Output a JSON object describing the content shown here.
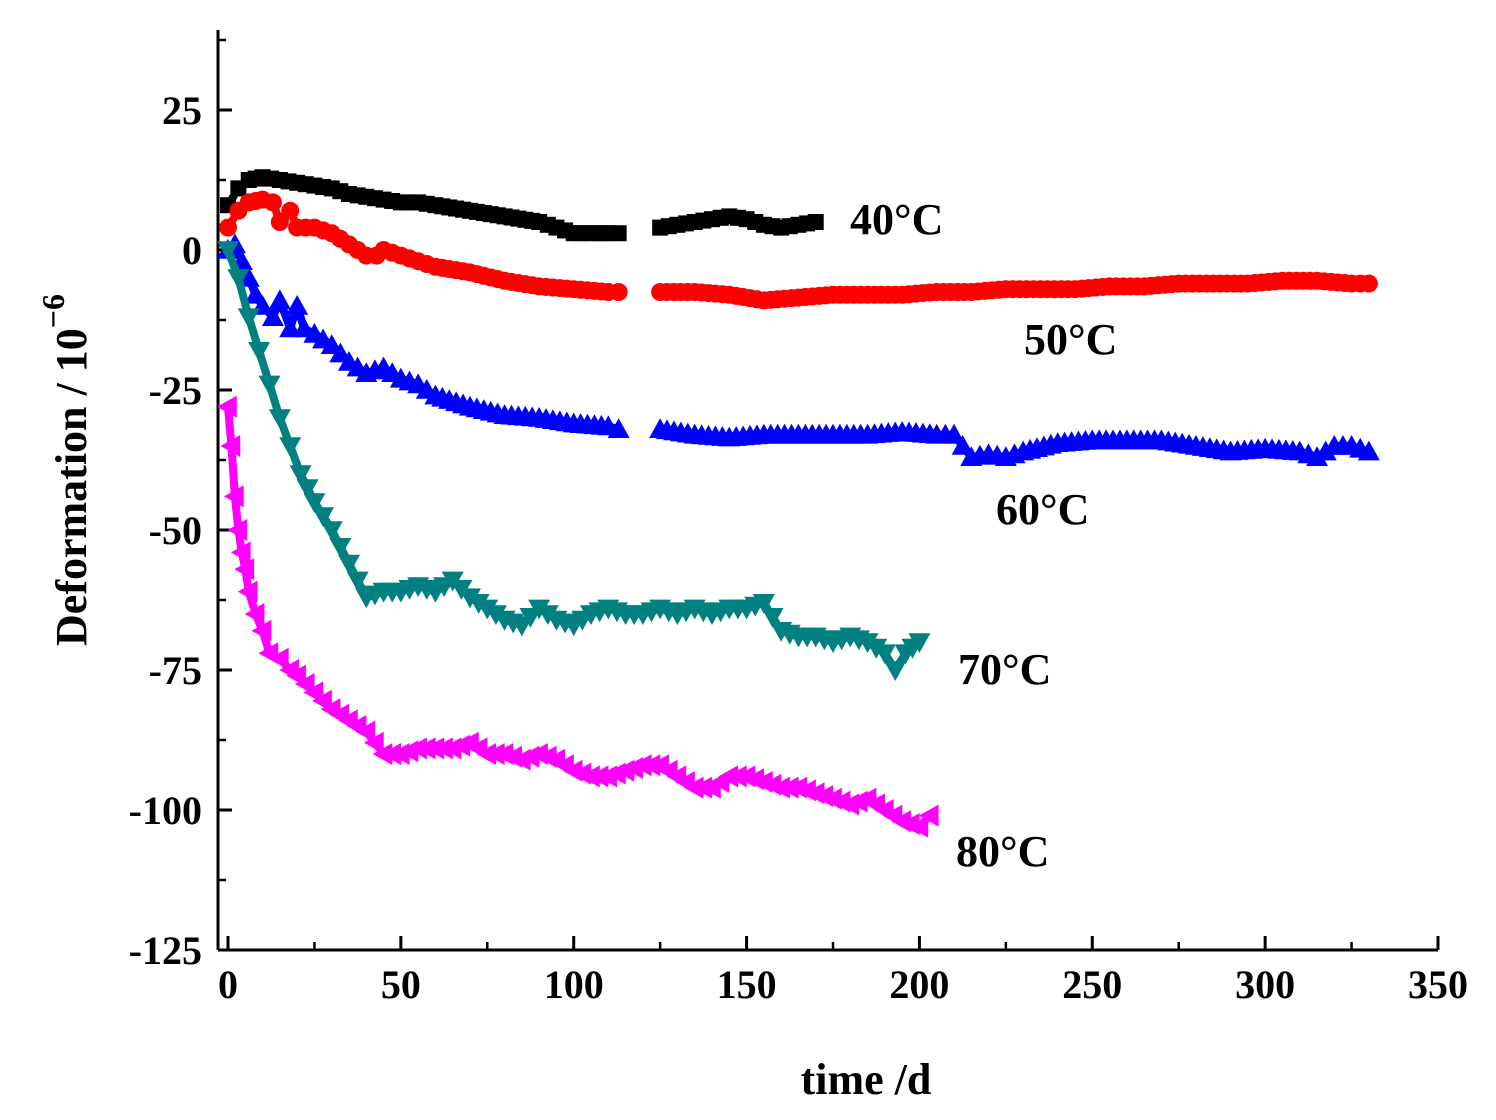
{
  "chart_data": {
    "type": "scatter",
    "title": "",
    "xlabel": "time /d",
    "ylabel_main": "Deformation / 10",
    "ylabel_exponent": "−6",
    "xlim": [
      0,
      350
    ],
    "ylim": [
      -125,
      40
    ],
    "x_major_ticks": [
      0,
      50,
      100,
      150,
      200,
      250,
      300,
      350
    ],
    "x_tick_labels": [
      "0",
      "50",
      "100",
      "150",
      "200",
      "250",
      "300",
      "350"
    ],
    "y_major_ticks": [
      25,
      0,
      -25,
      -50,
      -75,
      -100,
      -125
    ],
    "y_tick_labels": [
      "25",
      "0",
      "-25",
      "-50",
      "-75",
      "-100",
      "-125"
    ],
    "grid": false,
    "legend": "inline labels at series ends",
    "series": [
      {
        "name": "40°C",
        "label": "40°C",
        "color": "#000000",
        "marker": "square",
        "segments": [
          {
            "x": [
              0,
              3,
              6,
              10,
              15,
              20,
              25,
              30,
              35,
              40,
              45,
              50,
              55,
              60,
              70,
              80,
              90,
              95,
              100,
              105,
              110,
              113
            ],
            "y": [
              8,
              11,
              12.5,
              13,
              12.5,
              12,
              11.5,
              11,
              10,
              9.5,
              9,
              8.5,
              8.5,
              8,
              7,
              6,
              5,
              4,
              3,
              3,
              3,
              3
            ]
          },
          {
            "x": [
              125,
              130,
              135,
              140,
              145,
              150,
              155,
              160,
              165,
              170
            ],
            "y": [
              4,
              4.5,
              5,
              5.5,
              6,
              5.5,
              4.5,
              4,
              4.5,
              5
            ]
          }
        ]
      },
      {
        "name": "50°C",
        "label": "50°C",
        "color": "#ff0000",
        "marker": "circle",
        "segments": [
          {
            "x": [
              0,
              3,
              6,
              10,
              13,
              15,
              18,
              20,
              25,
              30,
              35,
              40,
              43,
              45,
              50,
              55,
              60,
              70,
              80,
              90,
              100,
              110,
              113
            ],
            "y": [
              4,
              7,
              8.5,
              9,
              8.5,
              5,
              7,
              4,
              4,
              3,
              1,
              -1,
              -1,
              0,
              -1,
              -2,
              -3,
              -4,
              -5.5,
              -6.5,
              -7,
              -7.5,
              -7.5
            ]
          },
          {
            "x": [
              125,
              135,
              145,
              155,
              165,
              175,
              185,
              195,
              205,
              215,
              225,
              235,
              245,
              255,
              265,
              275,
              285,
              295,
              305,
              315,
              325,
              330
            ],
            "y": [
              -7.5,
              -7.5,
              -8,
              -9,
              -8.5,
              -8,
              -8,
              -8,
              -7.5,
              -7.5,
              -7,
              -7,
              -7,
              -6.5,
              -6.5,
              -6,
              -6,
              -6,
              -5.5,
              -5.5,
              -6,
              -6
            ]
          }
        ]
      },
      {
        "name": "60°C",
        "label": "60°C",
        "color": "#0000ff",
        "marker": "triangle-up",
        "segments": [
          {
            "x": [
              0,
              2,
              4,
              6,
              8,
              10,
              13,
              15,
              18,
              20,
              22,
              25,
              30,
              35,
              40,
              45,
              50,
              55,
              60,
              70,
              80,
              90,
              100,
              110,
              113
            ],
            "y": [
              0,
              1,
              -2,
              -5,
              -8,
              -10,
              -12,
              -9,
              -14,
              -10,
              -14,
              -15,
              -17,
              -20,
              -22,
              -21,
              -23,
              -24,
              -26,
              -28,
              -29.5,
              -30,
              -31,
              -31.5,
              -32
            ]
          },
          {
            "x": [
              125,
              135,
              145,
              155,
              165,
              175,
              185,
              195,
              205,
              210,
              215,
              220,
              225,
              230,
              240,
              250,
              260,
              270,
              280,
              290,
              300,
              310,
              315,
              320,
              325,
              330
            ],
            "y": [
              -32,
              -33,
              -33.5,
              -33,
              -33,
              -33,
              -33,
              -32.5,
              -33,
              -33,
              -37,
              -36.5,
              -37,
              -36,
              -34.5,
              -34,
              -34,
              -34,
              -35,
              -36,
              -35.5,
              -36,
              -37,
              -35,
              -35,
              -36
            ]
          }
        ]
      },
      {
        "name": "70°C",
        "label": "70°C",
        "color": "#008080",
        "marker": "triangle-down",
        "segments": [
          {
            "x": [
              0,
              3,
              6,
              9,
              12,
              15,
              18,
              21,
              25,
              30,
              35,
              40,
              45,
              50,
              55,
              60,
              65,
              70,
              75,
              80,
              85,
              90,
              95,
              100,
              105,
              110,
              115,
              120,
              125,
              130,
              135,
              140,
              145,
              150,
              155,
              160,
              165,
              170,
              175,
              180,
              185,
              190,
              193,
              196,
              200
            ],
            "y": [
              0,
              -5,
              -12,
              -18,
              -24,
              -30,
              -35,
              -40,
              -45,
              -50,
              -56,
              -62,
              -61,
              -61,
              -60,
              -61,
              -59,
              -62,
              -64,
              -66,
              -67,
              -64,
              -66,
              -67,
              -65,
              -64,
              -65,
              -65,
              -64,
              -65,
              -64,
              -65,
              -64,
              -64,
              -63,
              -68,
              -69,
              -69,
              -70,
              -69,
              -70,
              -72,
              -75,
              -72,
              -70
            ]
          }
        ]
      },
      {
        "name": "80°C",
        "label": "80°C",
        "color": "#ff00ff",
        "marker": "triangle-left",
        "segments": [
          {
            "x": [
              0,
              1,
              2,
              3,
              4,
              5,
              6,
              8,
              10,
              12,
              15,
              18,
              20,
              25,
              30,
              35,
              40,
              45,
              50,
              55,
              60,
              65,
              70,
              75,
              80,
              85,
              90,
              95,
              100,
              105,
              110,
              115,
              120,
              125,
              130,
              135,
              140,
              145,
              150,
              155,
              160,
              165,
              170,
              175,
              180,
              185,
              190,
              195,
              200,
              203
            ],
            "y": [
              -28,
              -35,
              -44,
              -50,
              -54,
              -57,
              -61,
              -65,
              -68,
              -72,
              -73,
              -75,
              -76,
              -79,
              -82,
              -84,
              -86,
              -90,
              -90,
              -89,
              -89,
              -89,
              -88,
              -90,
              -90,
              -91,
              -90,
              -91,
              -93,
              -94,
              -94,
              -93,
              -92,
              -92,
              -94,
              -96,
              -96,
              -94,
              -94,
              -95,
              -96,
              -96,
              -97,
              -98,
              -99,
              -98,
              -100,
              -102,
              -103,
              -101
            ]
          }
        ]
      }
    ]
  }
}
